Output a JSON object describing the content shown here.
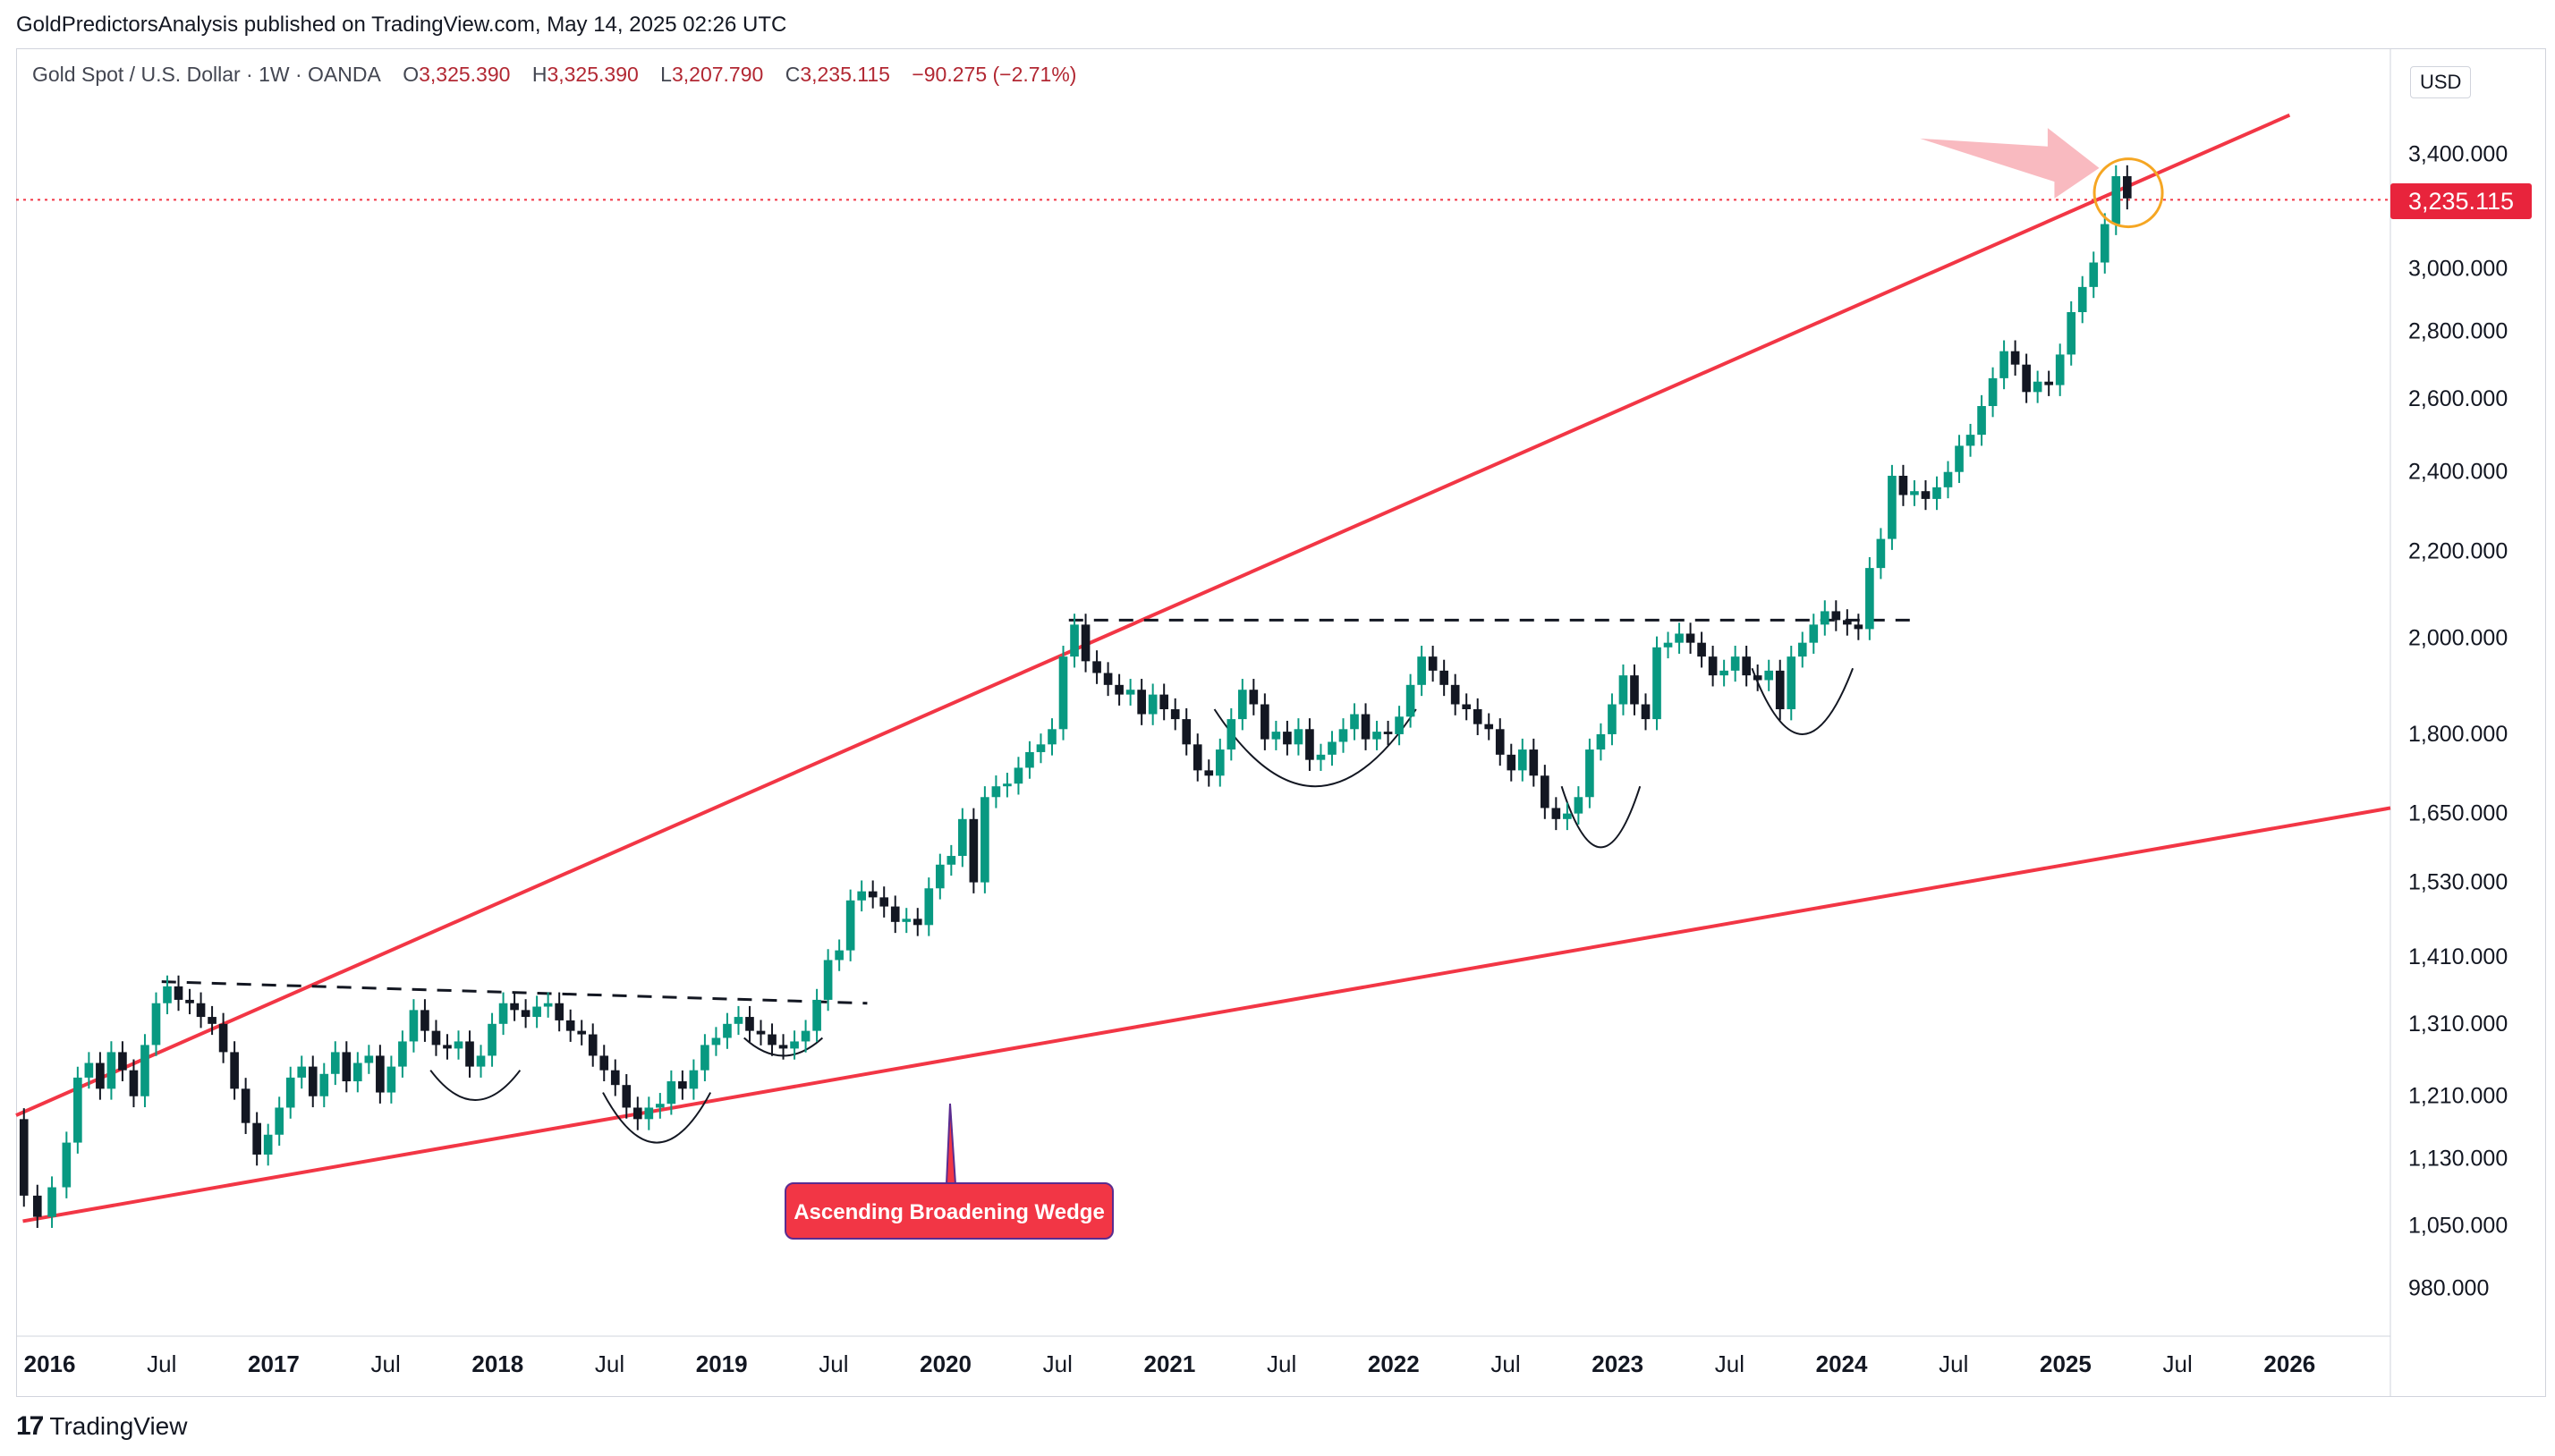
{
  "header": {
    "published_line": "GoldPredictorsAnalysis published on TradingView.com, May 14, 2025 02:26 UTC"
  },
  "legend": {
    "symbol": "Gold Spot / U.S. Dollar · 1W · OANDA",
    "open_label": "O",
    "open": "3,325.390",
    "high_label": "H",
    "high": "3,325.390",
    "low_label": "L",
    "low": "3,207.790",
    "close_label": "C",
    "close": "3,235.115",
    "change": "−90.275 (−2.71%)"
  },
  "price_scale": {
    "currency": "USD",
    "last_price": "3,235.115"
  },
  "annotation": {
    "label": "Ascending Broadening Wedge"
  },
  "branding": {
    "logo": "17",
    "name": "TradingView"
  },
  "colors": {
    "up": "#089981",
    "down": "#131722",
    "trendline": "#f23645",
    "last_price": "#f23645",
    "circle": "#f5a623",
    "arrow": "#f7a9b0",
    "dashed": "#131722"
  },
  "chart_data": {
    "type": "line",
    "title": "Gold Spot / U.S. Dollar · 1W · OANDA",
    "y_scale": "log",
    "ylim": [
      930,
      3820
    ],
    "y_ticks": [
      {
        "value": 3400,
        "label": "3,400.000"
      },
      {
        "value": 3000,
        "label": "3,000.000"
      },
      {
        "value": 2800,
        "label": "2,800.000"
      },
      {
        "value": 2600,
        "label": "2,600.000"
      },
      {
        "value": 2400,
        "label": "2,400.000"
      },
      {
        "value": 2200,
        "label": "2,200.000"
      },
      {
        "value": 2000,
        "label": "2,000.000"
      },
      {
        "value": 1800,
        "label": "1,800.000"
      },
      {
        "value": 1650,
        "label": "1,650.000"
      },
      {
        "value": 1530,
        "label": "1,530.000"
      },
      {
        "value": 1410,
        "label": "1,410.000"
      },
      {
        "value": 1310,
        "label": "1,310.000"
      },
      {
        "value": 1210,
        "label": "1,210.000"
      },
      {
        "value": 1130,
        "label": "1,130.000"
      },
      {
        "value": 1050,
        "label": "1,050.000"
      },
      {
        "value": 980,
        "label": "980.000"
      }
    ],
    "xlim": [
      2015.85,
      2026.45
    ],
    "x_ticks": [
      {
        "value": 2016.0,
        "label": "2016",
        "bold": true
      },
      {
        "value": 2016.5,
        "label": "Jul",
        "bold": false
      },
      {
        "value": 2017.0,
        "label": "2017",
        "bold": true
      },
      {
        "value": 2017.5,
        "label": "Jul",
        "bold": false
      },
      {
        "value": 2018.0,
        "label": "2018",
        "bold": true
      },
      {
        "value": 2018.5,
        "label": "Jul",
        "bold": false
      },
      {
        "value": 2019.0,
        "label": "2019",
        "bold": true
      },
      {
        "value": 2019.5,
        "label": "Jul",
        "bold": false
      },
      {
        "value": 2020.0,
        "label": "2020",
        "bold": true
      },
      {
        "value": 2020.5,
        "label": "Jul",
        "bold": false
      },
      {
        "value": 2021.0,
        "label": "2021",
        "bold": true
      },
      {
        "value": 2021.5,
        "label": "Jul",
        "bold": false
      },
      {
        "value": 2022.0,
        "label": "2022",
        "bold": true
      },
      {
        "value": 2022.5,
        "label": "Jul",
        "bold": false
      },
      {
        "value": 2023.0,
        "label": "2023",
        "bold": true
      },
      {
        "value": 2023.5,
        "label": "Jul",
        "bold": false
      },
      {
        "value": 2024.0,
        "label": "2024",
        "bold": true
      },
      {
        "value": 2024.5,
        "label": "Jul",
        "bold": false
      },
      {
        "value": 2025.0,
        "label": "2025",
        "bold": true
      },
      {
        "value": 2025.5,
        "label": "Jul",
        "bold": false
      },
      {
        "value": 2026.0,
        "label": "2026",
        "bold": true
      }
    ],
    "series": [
      {
        "values": [
          [
            2015.85,
            1180
          ],
          [
            2015.92,
            1085
          ],
          [
            2015.97,
            1060
          ],
          [
            2016.05,
            1095
          ],
          [
            2016.1,
            1150
          ],
          [
            2016.15,
            1235
          ],
          [
            2016.2,
            1255
          ],
          [
            2016.25,
            1220
          ],
          [
            2016.3,
            1270
          ],
          [
            2016.35,
            1245
          ],
          [
            2016.4,
            1210
          ],
          [
            2016.45,
            1280
          ],
          [
            2016.5,
            1340
          ],
          [
            2016.55,
            1365
          ],
          [
            2016.6,
            1345
          ],
          [
            2016.65,
            1340
          ],
          [
            2016.7,
            1320
          ],
          [
            2016.75,
            1310
          ],
          [
            2016.8,
            1270
          ],
          [
            2016.85,
            1220
          ],
          [
            2016.9,
            1175
          ],
          [
            2016.95,
            1135
          ],
          [
            2017.0,
            1160
          ],
          [
            2017.05,
            1195
          ],
          [
            2017.1,
            1235
          ],
          [
            2017.15,
            1250
          ],
          [
            2017.2,
            1210
          ],
          [
            2017.25,
            1240
          ],
          [
            2017.3,
            1270
          ],
          [
            2017.35,
            1230
          ],
          [
            2017.4,
            1255
          ],
          [
            2017.45,
            1265
          ],
          [
            2017.5,
            1215
          ],
          [
            2017.55,
            1250
          ],
          [
            2017.6,
            1285
          ],
          [
            2017.65,
            1330
          ],
          [
            2017.7,
            1300
          ],
          [
            2017.75,
            1280
          ],
          [
            2017.8,
            1275
          ],
          [
            2017.85,
            1285
          ],
          [
            2017.9,
            1250
          ],
          [
            2017.95,
            1265
          ],
          [
            2018.0,
            1310
          ],
          [
            2018.05,
            1340
          ],
          [
            2018.1,
            1330
          ],
          [
            2018.15,
            1320
          ],
          [
            2018.2,
            1335
          ],
          [
            2018.25,
            1340
          ],
          [
            2018.3,
            1315
          ],
          [
            2018.35,
            1300
          ],
          [
            2018.4,
            1295
          ],
          [
            2018.45,
            1265
          ],
          [
            2018.5,
            1245
          ],
          [
            2018.55,
            1225
          ],
          [
            2018.6,
            1195
          ],
          [
            2018.65,
            1180
          ],
          [
            2018.7,
            1195
          ],
          [
            2018.75,
            1200
          ],
          [
            2018.8,
            1230
          ],
          [
            2018.85,
            1220
          ],
          [
            2018.9,
            1245
          ],
          [
            2018.95,
            1280
          ],
          [
            2019.0,
            1290
          ],
          [
            2019.05,
            1310
          ],
          [
            2019.1,
            1320
          ],
          [
            2019.15,
            1300
          ],
          [
            2019.2,
            1295
          ],
          [
            2019.25,
            1280
          ],
          [
            2019.3,
            1275
          ],
          [
            2019.35,
            1285
          ],
          [
            2019.4,
            1300
          ],
          [
            2019.45,
            1345
          ],
          [
            2019.5,
            1405
          ],
          [
            2019.55,
            1420
          ],
          [
            2019.6,
            1500
          ],
          [
            2019.65,
            1515
          ],
          [
            2019.7,
            1505
          ],
          [
            2019.75,
            1490
          ],
          [
            2019.8,
            1465
          ],
          [
            2019.85,
            1470
          ],
          [
            2019.9,
            1460
          ],
          [
            2019.95,
            1520
          ],
          [
            2020.0,
            1560
          ],
          [
            2020.05,
            1575
          ],
          [
            2020.1,
            1640
          ],
          [
            2020.15,
            1530
          ],
          [
            2020.2,
            1680
          ],
          [
            2020.25,
            1700
          ],
          [
            2020.3,
            1705
          ],
          [
            2020.35,
            1735
          ],
          [
            2020.4,
            1765
          ],
          [
            2020.45,
            1780
          ],
          [
            2020.5,
            1810
          ],
          [
            2020.55,
            1960
          ],
          [
            2020.6,
            2030
          ],
          [
            2020.65,
            1950
          ],
          [
            2020.7,
            1925
          ],
          [
            2020.75,
            1900
          ],
          [
            2020.8,
            1880
          ],
          [
            2020.85,
            1890
          ],
          [
            2020.9,
            1840
          ],
          [
            2020.95,
            1880
          ],
          [
            2021.0,
            1850
          ],
          [
            2021.05,
            1830
          ],
          [
            2021.1,
            1780
          ],
          [
            2021.15,
            1730
          ],
          [
            2021.2,
            1720
          ],
          [
            2021.25,
            1770
          ],
          [
            2021.3,
            1830
          ],
          [
            2021.35,
            1890
          ],
          [
            2021.4,
            1860
          ],
          [
            2021.45,
            1790
          ],
          [
            2021.5,
            1805
          ],
          [
            2021.55,
            1780
          ],
          [
            2021.6,
            1810
          ],
          [
            2021.65,
            1750
          ],
          [
            2021.7,
            1760
          ],
          [
            2021.75,
            1785
          ],
          [
            2021.8,
            1810
          ],
          [
            2021.85,
            1840
          ],
          [
            2021.9,
            1790
          ],
          [
            2021.95,
            1805
          ],
          [
            2022.0,
            1800
          ],
          [
            2022.05,
            1835
          ],
          [
            2022.1,
            1900
          ],
          [
            2022.15,
            1960
          ],
          [
            2022.2,
            1930
          ],
          [
            2022.25,
            1900
          ],
          [
            2022.3,
            1860
          ],
          [
            2022.35,
            1850
          ],
          [
            2022.4,
            1820
          ],
          [
            2022.45,
            1810
          ],
          [
            2022.5,
            1760
          ],
          [
            2022.55,
            1730
          ],
          [
            2022.6,
            1770
          ],
          [
            2022.65,
            1720
          ],
          [
            2022.7,
            1660
          ],
          [
            2022.75,
            1640
          ],
          [
            2022.8,
            1650
          ],
          [
            2022.85,
            1680
          ],
          [
            2022.9,
            1770
          ],
          [
            2022.95,
            1800
          ],
          [
            2023.0,
            1860
          ],
          [
            2023.05,
            1920
          ],
          [
            2023.1,
            1860
          ],
          [
            2023.15,
            1830
          ],
          [
            2023.2,
            1980
          ],
          [
            2023.25,
            1990
          ],
          [
            2023.3,
            2010
          ],
          [
            2023.35,
            1990
          ],
          [
            2023.4,
            1960
          ],
          [
            2023.45,
            1920
          ],
          [
            2023.5,
            1930
          ],
          [
            2023.55,
            1960
          ],
          [
            2023.6,
            1920
          ],
          [
            2023.65,
            1910
          ],
          [
            2023.7,
            1930
          ],
          [
            2023.75,
            1850
          ],
          [
            2023.8,
            1960
          ],
          [
            2023.85,
            1990
          ],
          [
            2023.9,
            2030
          ],
          [
            2023.95,
            2060
          ],
          [
            2024.0,
            2040
          ],
          [
            2024.05,
            2030
          ],
          [
            2024.1,
            2020
          ],
          [
            2024.15,
            2160
          ],
          [
            2024.2,
            2230
          ],
          [
            2024.25,
            2390
          ],
          [
            2024.3,
            2340
          ],
          [
            2024.35,
            2350
          ],
          [
            2024.4,
            2330
          ],
          [
            2024.45,
            2360
          ],
          [
            2024.5,
            2400
          ],
          [
            2024.55,
            2470
          ],
          [
            2024.6,
            2500
          ],
          [
            2024.65,
            2580
          ],
          [
            2024.7,
            2660
          ],
          [
            2024.75,
            2740
          ],
          [
            2024.8,
            2700
          ],
          [
            2024.85,
            2620
          ],
          [
            2024.9,
            2650
          ],
          [
            2024.95,
            2640
          ],
          [
            2025.0,
            2730
          ],
          [
            2025.05,
            2860
          ],
          [
            2025.1,
            2940
          ],
          [
            2025.15,
            3020
          ],
          [
            2025.2,
            3150
          ],
          [
            2025.25,
            3320
          ],
          [
            2025.3,
            3240
          ]
        ]
      }
    ]
  }
}
